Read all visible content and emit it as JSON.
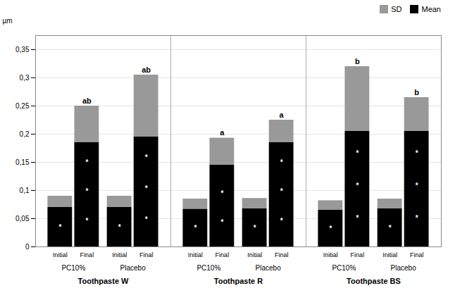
{
  "chart_data": {
    "type": "bar",
    "stacked": true,
    "groups": [
      "Toothpaste W",
      "Toothpaste R",
      "Toothpaste BS"
    ],
    "subgroups": [
      "PC10%",
      "Placebo"
    ],
    "categories": [
      "Initial",
      "Final",
      "Initial",
      "Final",
      "Initial",
      "Final",
      "Initial",
      "Final",
      "Initial",
      "Final",
      "Initial",
      "Final"
    ],
    "series": [
      {
        "name": "Mean",
        "color": "#000000",
        "values": [
          0.07,
          0.185,
          0.07,
          0.195,
          0.067,
          0.145,
          0.068,
          0.185,
          0.065,
          0.205,
          0.068,
          0.205
        ]
      },
      {
        "name": "SD",
        "color": "#999999",
        "values": [
          0.02,
          0.065,
          0.02,
          0.11,
          0.018,
          0.048,
          0.018,
          0.04,
          0.017,
          0.115,
          0.017,
          0.06
        ]
      }
    ],
    "annotations": [
      null,
      "ab",
      null,
      "ab",
      null,
      "a",
      null,
      "a",
      null,
      "b",
      null,
      "b"
    ],
    "star_text": "*",
    "star_counts": [
      1,
      3,
      1,
      3,
      1,
      2,
      1,
      3,
      1,
      3,
      1,
      3
    ],
    "ylabel": "µm",
    "ylim": [
      0,
      0.375
    ],
    "yticks": [
      0,
      {
        "value": 0.05,
        "label": "0,05"
      },
      {
        "value": 0.1,
        "label": "0,1"
      },
      {
        "value": 0.15,
        "label": "0,15"
      },
      {
        "value": 0.2,
        "label": "0,2"
      },
      {
        "value": 0.25,
        "label": "0,25"
      },
      {
        "value": 0.3,
        "label": "0,3"
      },
      {
        "value": 0.35,
        "label": "0,35"
      }
    ],
    "grid": true,
    "legend": "upper right"
  }
}
